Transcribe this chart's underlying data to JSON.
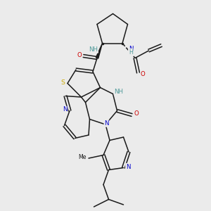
{
  "background_color": "#ebebeb",
  "atom_colors": {
    "C": "#1a1a1a",
    "N": "#0000cc",
    "O": "#cc0000",
    "S": "#ccaa00",
    "NH": "#4d9999"
  },
  "figsize": [
    3.0,
    3.0
  ],
  "dpi": 100
}
